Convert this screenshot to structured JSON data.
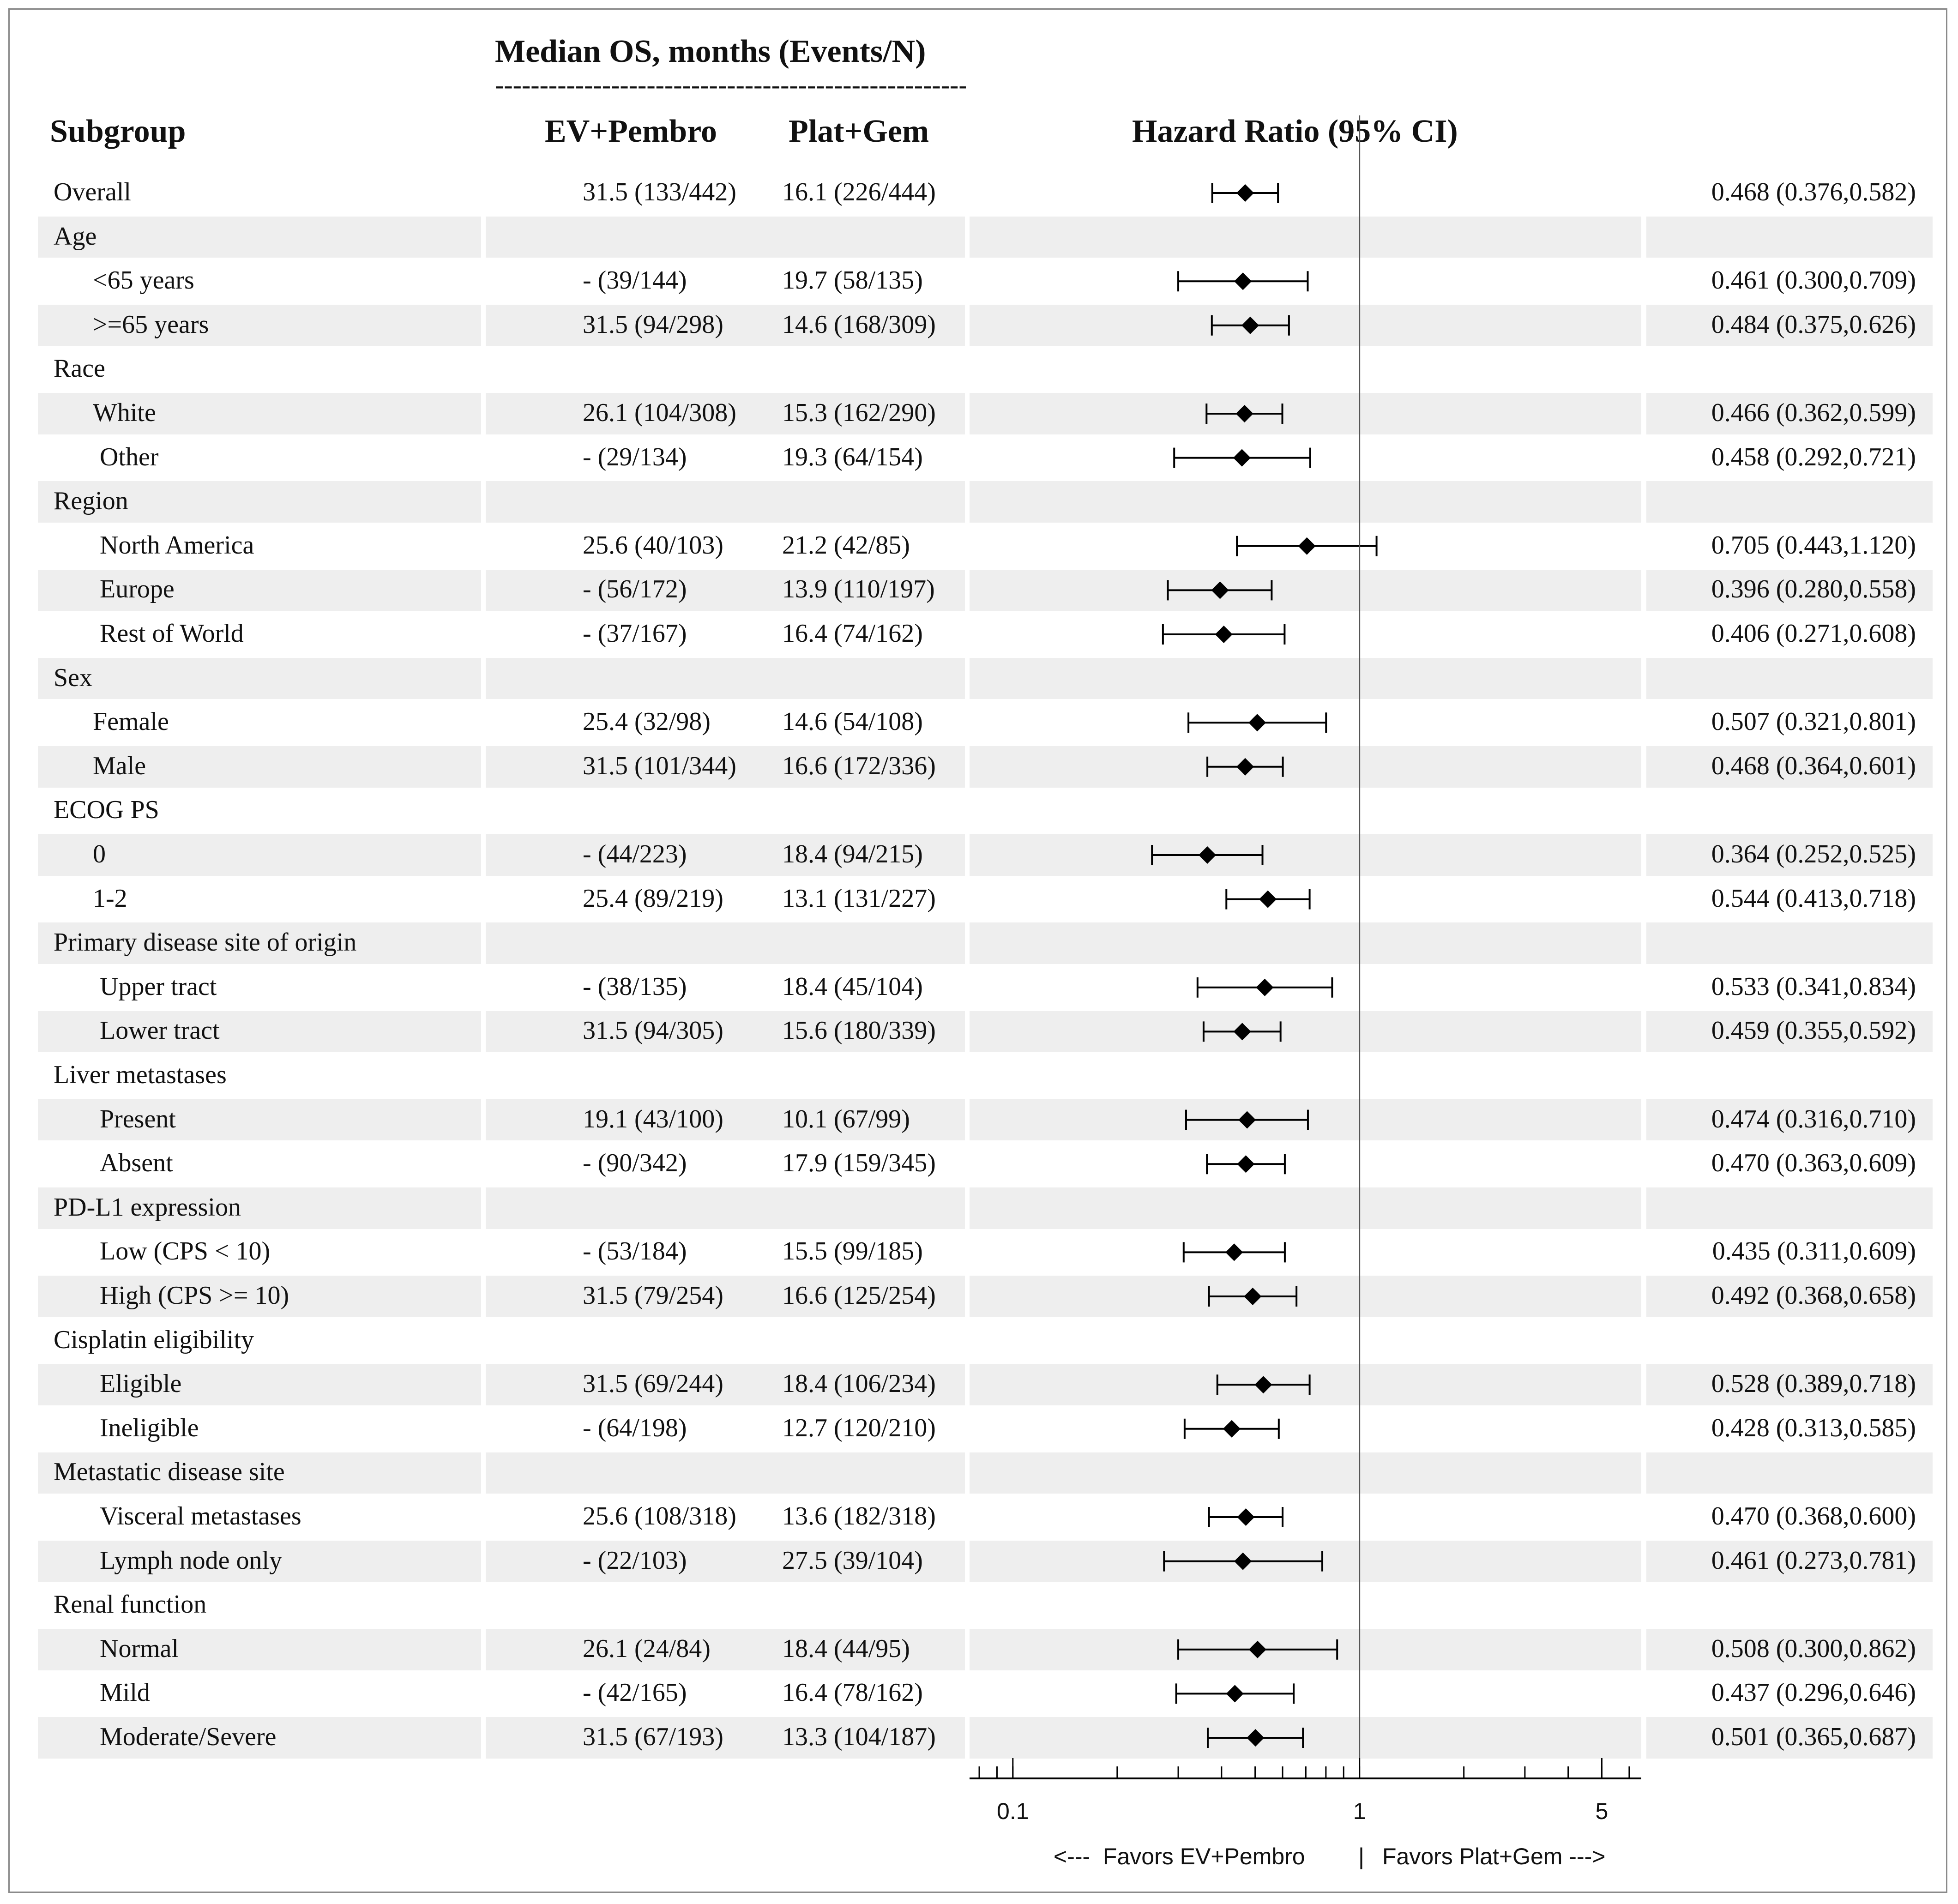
{
  "header": {
    "group_title": "Median OS, months (Events/N)",
    "dashes": "------------------------------------------------------------",
    "subgroup": "Subgroup",
    "arm1": "EV+Pembro",
    "arm2": "Plat+Gem",
    "hr": "Hazard Ratio (95% CI)"
  },
  "footer": {
    "favors_left": "<---  Favors EV+Pembro",
    "separator": "|",
    "favors_right": "Favors Plat+Gem --->"
  },
  "chart_data": {
    "type": "forest",
    "xscale": "log",
    "xlim": [
      0.075,
      6.5
    ],
    "ticks": [
      0.1,
      1,
      5
    ],
    "tick_labels": [
      "0.1",
      "1",
      "5"
    ],
    "reference_line": 1,
    "rows": [
      {
        "label": "Overall",
        "indent": 0,
        "header": false,
        "arm1": "31.5 (133/442)",
        "arm2": "16.1 (226/444)",
        "hr": 0.468,
        "lo": 0.376,
        "hi": 0.582,
        "ci_text": "0.468 (0.376,0.582)"
      },
      {
        "label": "Age",
        "indent": 0,
        "header": true
      },
      {
        "label": "<65 years",
        "indent": 2,
        "header": false,
        "arm1": "- (39/144)",
        "arm2": "19.7 (58/135)",
        "hr": 0.461,
        "lo": 0.3,
        "hi": 0.709,
        "ci_text": "0.461 (0.300,0.709)"
      },
      {
        "label": ">=65 years",
        "indent": 2,
        "header": false,
        "arm1": "31.5 (94/298)",
        "arm2": "14.6 (168/309)",
        "hr": 0.484,
        "lo": 0.375,
        "hi": 0.626,
        "ci_text": "0.484 (0.375,0.626)"
      },
      {
        "label": "Race",
        "indent": 0,
        "header": true
      },
      {
        "label": "White",
        "indent": 2,
        "header": false,
        "arm1": "26.1 (104/308)",
        "arm2": "15.3 (162/290)",
        "hr": 0.466,
        "lo": 0.362,
        "hi": 0.599,
        "ci_text": "0.466 (0.362,0.599)"
      },
      {
        "label": "Other",
        "indent": 3,
        "header": false,
        "arm1": "- (29/134)",
        "arm2": "19.3 (64/154)",
        "hr": 0.458,
        "lo": 0.292,
        "hi": 0.721,
        "ci_text": "0.458 (0.292,0.721)"
      },
      {
        "label": "Region",
        "indent": 0,
        "header": true
      },
      {
        "label": "North America",
        "indent": 3,
        "header": false,
        "arm1": "25.6 (40/103)",
        "arm2": "21.2 (42/85)",
        "hr": 0.705,
        "lo": 0.443,
        "hi": 1.12,
        "ci_text": "0.705 (0.443,1.120)"
      },
      {
        "label": "Europe",
        "indent": 3,
        "header": false,
        "arm1": "- (56/172)",
        "arm2": "13.9 (110/197)",
        "hr": 0.396,
        "lo": 0.28,
        "hi": 0.558,
        "ci_text": "0.396 (0.280,0.558)"
      },
      {
        "label": "Rest of World",
        "indent": 3,
        "header": false,
        "arm1": "- (37/167)",
        "arm2": "16.4 (74/162)",
        "hr": 0.406,
        "lo": 0.271,
        "hi": 0.608,
        "ci_text": "0.406 (0.271,0.608)"
      },
      {
        "label": "Sex",
        "indent": 0,
        "header": true
      },
      {
        "label": "Female",
        "indent": 2,
        "header": false,
        "arm1": "25.4 (32/98)",
        "arm2": "14.6 (54/108)",
        "hr": 0.507,
        "lo": 0.321,
        "hi": 0.801,
        "ci_text": "0.507 (0.321,0.801)"
      },
      {
        "label": "Male",
        "indent": 2,
        "header": false,
        "arm1": "31.5 (101/344)",
        "arm2": "16.6 (172/336)",
        "hr": 0.468,
        "lo": 0.364,
        "hi": 0.601,
        "ci_text": "0.468 (0.364,0.601)"
      },
      {
        "label": "ECOG PS",
        "indent": 0,
        "header": true
      },
      {
        "label": "0",
        "indent": 2,
        "header": false,
        "arm1": "- (44/223)",
        "arm2": "18.4 (94/215)",
        "hr": 0.364,
        "lo": 0.252,
        "hi": 0.525,
        "ci_text": "0.364 (0.252,0.525)"
      },
      {
        "label": "1-2",
        "indent": 2,
        "header": false,
        "arm1": "25.4 (89/219)",
        "arm2": "13.1 (131/227)",
        "hr": 0.544,
        "lo": 0.413,
        "hi": 0.718,
        "ci_text": "0.544 (0.413,0.718)"
      },
      {
        "label": "Primary disease site of origin",
        "indent": 0,
        "header": true
      },
      {
        "label": "Upper tract",
        "indent": 3,
        "header": false,
        "arm1": "- (38/135)",
        "arm2": "18.4 (45/104)",
        "hr": 0.533,
        "lo": 0.341,
        "hi": 0.834,
        "ci_text": "0.533 (0.341,0.834)"
      },
      {
        "label": "Lower tract",
        "indent": 3,
        "header": false,
        "arm1": "31.5 (94/305)",
        "arm2": "15.6 (180/339)",
        "hr": 0.459,
        "lo": 0.355,
        "hi": 0.592,
        "ci_text": "0.459 (0.355,0.592)"
      },
      {
        "label": "Liver metastases",
        "indent": 0,
        "header": true
      },
      {
        "label": "Present",
        "indent": 3,
        "header": false,
        "arm1": "19.1 (43/100)",
        "arm2": "10.1 (67/99)",
        "hr": 0.474,
        "lo": 0.316,
        "hi": 0.71,
        "ci_text": "0.474 (0.316,0.710)"
      },
      {
        "label": "Absent",
        "indent": 3,
        "header": false,
        "arm1": "- (90/342)",
        "arm2": "17.9 (159/345)",
        "hr": 0.47,
        "lo": 0.363,
        "hi": 0.609,
        "ci_text": "0.470 (0.363,0.609)"
      },
      {
        "label": "PD-L1 expression",
        "indent": 0,
        "header": true
      },
      {
        "label": "Low (CPS < 10)",
        "indent": 3,
        "header": false,
        "arm1": "- (53/184)",
        "arm2": "15.5 (99/185)",
        "hr": 0.435,
        "lo": 0.311,
        "hi": 0.609,
        "ci_text": "0.435 (0.311,0.609)"
      },
      {
        "label": "High (CPS >= 10)",
        "indent": 3,
        "header": false,
        "arm1": "31.5 (79/254)",
        "arm2": "16.6 (125/254)",
        "hr": 0.492,
        "lo": 0.368,
        "hi": 0.658,
        "ci_text": "0.492 (0.368,0.658)"
      },
      {
        "label": "Cisplatin eligibility",
        "indent": 0,
        "header": true
      },
      {
        "label": "Eligible",
        "indent": 3,
        "header": false,
        "arm1": "31.5 (69/244)",
        "arm2": "18.4 (106/234)",
        "hr": 0.528,
        "lo": 0.389,
        "hi": 0.718,
        "ci_text": "0.528 (0.389,0.718)"
      },
      {
        "label": "Ineligible",
        "indent": 3,
        "header": false,
        "arm1": "- (64/198)",
        "arm2": "12.7 (120/210)",
        "hr": 0.428,
        "lo": 0.313,
        "hi": 0.585,
        "ci_text": "0.428 (0.313,0.585)"
      },
      {
        "label": "Metastatic disease site",
        "indent": 0,
        "header": true
      },
      {
        "label": "Visceral metastases",
        "indent": 3,
        "header": false,
        "arm1": "25.6 (108/318)",
        "arm2": "13.6 (182/318)",
        "hr": 0.47,
        "lo": 0.368,
        "hi": 0.6,
        "ci_text": "0.470 (0.368,0.600)"
      },
      {
        "label": "Lymph node only",
        "indent": 3,
        "header": false,
        "arm1": "- (22/103)",
        "arm2": "27.5 (39/104)",
        "hr": 0.461,
        "lo": 0.273,
        "hi": 0.781,
        "ci_text": "0.461 (0.273,0.781)"
      },
      {
        "label": "Renal function",
        "indent": 0,
        "header": true
      },
      {
        "label": "Normal",
        "indent": 3,
        "header": false,
        "arm1": "26.1 (24/84)",
        "arm2": "18.4 (44/95)",
        "hr": 0.508,
        "lo": 0.3,
        "hi": 0.862,
        "ci_text": "0.508 (0.300,0.862)"
      },
      {
        "label": "Mild",
        "indent": 3,
        "header": false,
        "arm1": "- (42/165)",
        "arm2": "16.4 (78/162)",
        "hr": 0.437,
        "lo": 0.296,
        "hi": 0.646,
        "ci_text": "0.437 (0.296,0.646)"
      },
      {
        "label": "Moderate/Severe",
        "indent": 3,
        "header": false,
        "arm1": "31.5 (67/193)",
        "arm2": "13.3 (104/187)",
        "hr": 0.501,
        "lo": 0.365,
        "hi": 0.687,
        "ci_text": "0.501 (0.365,0.687)"
      }
    ]
  }
}
